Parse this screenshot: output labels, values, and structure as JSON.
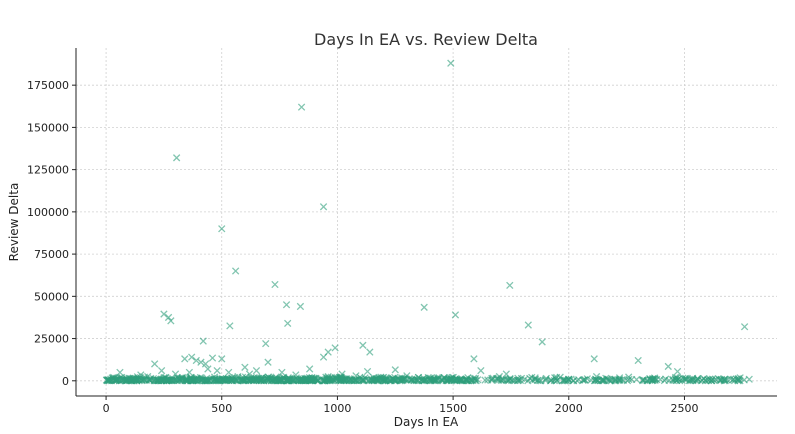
{
  "chart_data": {
    "type": "scatter",
    "title": "Days In EA vs. Review Delta",
    "xlabel": "Days In EA",
    "ylabel": "Review Delta",
    "xlim": [
      -130,
      2900
    ],
    "ylim": [
      -9000,
      197000
    ],
    "xticks": [
      0,
      500,
      1000,
      1500,
      2000,
      2500
    ],
    "yticks": [
      0,
      25000,
      50000,
      75000,
      100000,
      125000,
      150000,
      175000
    ],
    "grid": true,
    "marker": "x",
    "color": "#2e9e7b",
    "points": [
      [
        1490,
        188000
      ],
      [
        845,
        162000
      ],
      [
        305,
        132000
      ],
      [
        940,
        103000
      ],
      [
        500,
        90000
      ],
      [
        560,
        65000
      ],
      [
        730,
        57000
      ],
      [
        1745,
        56500
      ],
      [
        780,
        45000
      ],
      [
        840,
        44000
      ],
      [
        1375,
        43500
      ],
      [
        250,
        39500
      ],
      [
        270,
        37500
      ],
      [
        280,
        35500
      ],
      [
        1510,
        39000
      ],
      [
        535,
        32500
      ],
      [
        785,
        34000
      ],
      [
        1825,
        33000
      ],
      [
        2760,
        32000
      ],
      [
        420,
        23500
      ],
      [
        690,
        22000
      ],
      [
        1885,
        23000
      ],
      [
        1110,
        21000
      ],
      [
        1140,
        17000
      ],
      [
        990,
        19500
      ],
      [
        960,
        17000
      ],
      [
        940,
        14000
      ],
      [
        2110,
        13000
      ],
      [
        2300,
        12000
      ],
      [
        1590,
        13000
      ],
      [
        370,
        14000
      ],
      [
        340,
        13000
      ],
      [
        390,
        12000
      ],
      [
        410,
        11000
      ],
      [
        430,
        10000
      ],
      [
        460,
        13500
      ],
      [
        500,
        13000
      ],
      [
        700,
        11000
      ],
      [
        210,
        10000
      ],
      [
        2430,
        8500
      ],
      [
        2470,
        5500
      ],
      [
        1250,
        6500
      ],
      [
        1130,
        5500
      ],
      [
        600,
        8000
      ],
      [
        650,
        6000
      ],
      [
        880,
        7000
      ],
      [
        1020,
        4000
      ],
      [
        60,
        5000
      ],
      [
        150,
        3500
      ],
      [
        300,
        4000
      ],
      [
        530,
        5000
      ],
      [
        1620,
        6000
      ],
      [
        1700,
        2500
      ],
      [
        1730,
        4000
      ],
      [
        1780,
        1500
      ],
      [
        1840,
        2000
      ],
      [
        1900,
        1000
      ],
      [
        2010,
        1000
      ],
      [
        2080,
        1200
      ],
      [
        2120,
        2500
      ],
      [
        2160,
        1500
      ],
      [
        2200,
        1000
      ],
      [
        2260,
        800
      ],
      [
        2320,
        500
      ],
      [
        2360,
        400
      ],
      [
        2450,
        300
      ],
      [
        2490,
        200
      ],
      [
        2560,
        600
      ],
      [
        2590,
        400
      ],
      [
        2620,
        1000
      ],
      [
        2660,
        800
      ],
      [
        2730,
        400
      ],
      [
        2780,
        900
      ],
      [
        1300,
        3000
      ],
      [
        1350,
        2000
      ],
      [
        1400,
        1500
      ],
      [
        1460,
        1000
      ],
      [
        1530,
        800
      ],
      [
        1560,
        600
      ],
      [
        1200,
        2000
      ],
      [
        1080,
        3000
      ],
      [
        960,
        2500
      ],
      [
        820,
        3500
      ],
      [
        760,
        5000
      ],
      [
        620,
        4000
      ],
      [
        480,
        6000
      ],
      [
        440,
        7000
      ],
      [
        360,
        5000
      ],
      [
        240,
        6000
      ],
      [
        180,
        2500
      ],
      [
        100,
        1500
      ],
      [
        20,
        1000
      ],
      [
        1650,
        500
      ],
      [
        1950,
        300
      ],
      [
        2230,
        600
      ],
      [
        1170,
        800
      ],
      [
        1040,
        1200
      ],
      [
        890,
        1800
      ],
      [
        570,
        2500
      ],
      [
        330,
        2000
      ]
    ]
  }
}
